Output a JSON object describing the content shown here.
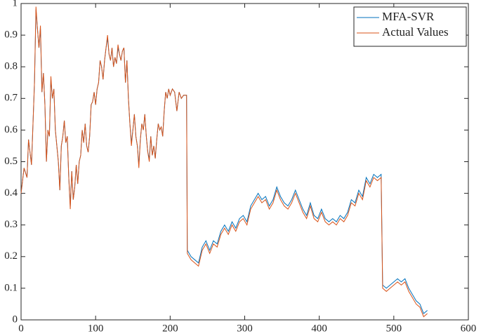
{
  "chart_data": {
    "type": "line",
    "x": [
      0,
      4,
      8,
      10,
      14,
      18,
      20,
      22,
      24,
      26,
      28,
      30,
      32,
      34,
      36,
      38,
      40,
      42,
      44,
      46,
      48,
      50,
      52,
      54,
      56,
      58,
      60,
      62,
      64,
      66,
      68,
      70,
      72,
      74,
      76,
      78,
      80,
      82,
      84,
      86,
      88,
      90,
      92,
      94,
      96,
      98,
      100,
      102,
      104,
      106,
      108,
      110,
      112,
      114,
      116,
      118,
      120,
      122,
      124,
      126,
      128,
      130,
      132,
      134,
      136,
      138,
      140,
      142,
      144,
      146,
      148,
      150,
      152,
      154,
      156,
      158,
      160,
      162,
      164,
      166,
      168,
      170,
      172,
      174,
      176,
      178,
      180,
      182,
      184,
      186,
      188,
      190,
      192,
      194,
      196,
      198,
      200,
      203,
      206,
      209,
      212,
      215,
      218,
      222,
      223,
      228,
      233,
      238,
      243,
      248,
      253,
      258,
      263,
      268,
      273,
      278,
      283,
      288,
      293,
      298,
      303,
      308,
      313,
      318,
      323,
      328,
      333,
      338,
      343,
      348,
      353,
      358,
      363,
      368,
      373,
      378,
      383,
      388,
      393,
      398,
      403,
      408,
      413,
      418,
      423,
      428,
      433,
      438,
      443,
      448,
      453,
      458,
      463,
      468,
      473,
      478,
      483,
      485,
      490,
      495,
      500,
      505,
      510,
      515,
      520,
      525,
      530,
      535,
      540,
      545
    ],
    "series": [
      {
        "name": "MFA-SVR",
        "color": "#0072bd",
        "values": [
          0.4,
          0.48,
          0.45,
          0.57,
          0.49,
          0.75,
          0.98,
          0.92,
          0.86,
          0.92,
          0.72,
          0.78,
          0.68,
          0.5,
          0.6,
          0.58,
          0.76,
          0.7,
          0.73,
          0.6,
          0.55,
          0.5,
          0.41,
          0.55,
          0.58,
          0.63,
          0.56,
          0.58,
          0.45,
          0.36,
          0.47,
          0.38,
          0.42,
          0.49,
          0.43,
          0.5,
          0.52,
          0.6,
          0.56,
          0.62,
          0.55,
          0.53,
          0.58,
          0.68,
          0.69,
          0.72,
          0.68,
          0.73,
          0.75,
          0.82,
          0.8,
          0.76,
          0.82,
          0.86,
          0.89,
          0.84,
          0.82,
          0.86,
          0.8,
          0.83,
          0.81,
          0.86,
          0.84,
          0.82,
          0.85,
          0.86,
          0.75,
          0.82,
          0.7,
          0.62,
          0.56,
          0.6,
          0.65,
          0.58,
          0.55,
          0.49,
          0.57,
          0.62,
          0.6,
          0.65,
          0.58,
          0.53,
          0.51,
          0.58,
          0.52,
          0.55,
          0.51,
          0.57,
          0.62,
          0.6,
          0.61,
          0.58,
          0.66,
          0.72,
          0.7,
          0.73,
          0.71,
          0.73,
          0.72,
          0.66,
          0.72,
          0.7,
          0.71,
          0.71,
          0.22,
          0.2,
          0.19,
          0.18,
          0.23,
          0.25,
          0.22,
          0.25,
          0.24,
          0.28,
          0.3,
          0.28,
          0.31,
          0.29,
          0.32,
          0.33,
          0.31,
          0.36,
          0.38,
          0.4,
          0.38,
          0.39,
          0.36,
          0.38,
          0.42,
          0.39,
          0.37,
          0.36,
          0.38,
          0.41,
          0.38,
          0.35,
          0.33,
          0.37,
          0.33,
          0.32,
          0.35,
          0.32,
          0.31,
          0.32,
          0.31,
          0.33,
          0.32,
          0.34,
          0.38,
          0.37,
          0.41,
          0.39,
          0.45,
          0.43,
          0.46,
          0.45,
          0.46,
          0.11,
          0.1,
          0.11,
          0.12,
          0.13,
          0.12,
          0.13,
          0.1,
          0.08,
          0.06,
          0.05,
          0.02,
          0.03
        ]
      },
      {
        "name": "Actual Values",
        "color": "#d95319",
        "values": [
          0.4,
          0.48,
          0.45,
          0.57,
          0.49,
          0.75,
          0.99,
          0.92,
          0.86,
          0.93,
          0.72,
          0.78,
          0.68,
          0.5,
          0.6,
          0.58,
          0.77,
          0.7,
          0.73,
          0.6,
          0.55,
          0.5,
          0.41,
          0.55,
          0.58,
          0.63,
          0.56,
          0.58,
          0.45,
          0.35,
          0.47,
          0.38,
          0.42,
          0.49,
          0.43,
          0.5,
          0.52,
          0.6,
          0.56,
          0.62,
          0.55,
          0.53,
          0.58,
          0.68,
          0.69,
          0.72,
          0.68,
          0.73,
          0.75,
          0.82,
          0.8,
          0.76,
          0.82,
          0.86,
          0.9,
          0.84,
          0.82,
          0.86,
          0.8,
          0.83,
          0.81,
          0.87,
          0.84,
          0.82,
          0.85,
          0.86,
          0.75,
          0.82,
          0.7,
          0.62,
          0.55,
          0.6,
          0.65,
          0.58,
          0.55,
          0.48,
          0.57,
          0.62,
          0.6,
          0.65,
          0.58,
          0.53,
          0.5,
          0.58,
          0.52,
          0.55,
          0.51,
          0.57,
          0.62,
          0.6,
          0.61,
          0.58,
          0.66,
          0.72,
          0.7,
          0.73,
          0.71,
          0.73,
          0.72,
          0.66,
          0.72,
          0.7,
          0.71,
          0.71,
          0.21,
          0.19,
          0.18,
          0.17,
          0.22,
          0.24,
          0.21,
          0.24,
          0.23,
          0.27,
          0.29,
          0.27,
          0.3,
          0.28,
          0.31,
          0.32,
          0.3,
          0.35,
          0.37,
          0.39,
          0.37,
          0.38,
          0.35,
          0.37,
          0.41,
          0.38,
          0.36,
          0.35,
          0.37,
          0.4,
          0.37,
          0.34,
          0.32,
          0.36,
          0.32,
          0.31,
          0.34,
          0.31,
          0.3,
          0.31,
          0.3,
          0.32,
          0.31,
          0.33,
          0.37,
          0.36,
          0.4,
          0.38,
          0.44,
          0.42,
          0.45,
          0.44,
          0.45,
          0.1,
          0.09,
          0.1,
          0.11,
          0.12,
          0.11,
          0.12,
          0.09,
          0.07,
          0.05,
          0.04,
          0.01,
          0.02
        ]
      }
    ],
    "xlim": [
      0,
      600
    ],
    "xticks": [
      0,
      100,
      200,
      300,
      400,
      500,
      600
    ],
    "ylim": [
      0,
      1
    ],
    "yticks": [
      0,
      0.1,
      0.2,
      0.3,
      0.4,
      0.5,
      0.6,
      0.7,
      0.8,
      0.9,
      1
    ],
    "legend": "top-right"
  }
}
